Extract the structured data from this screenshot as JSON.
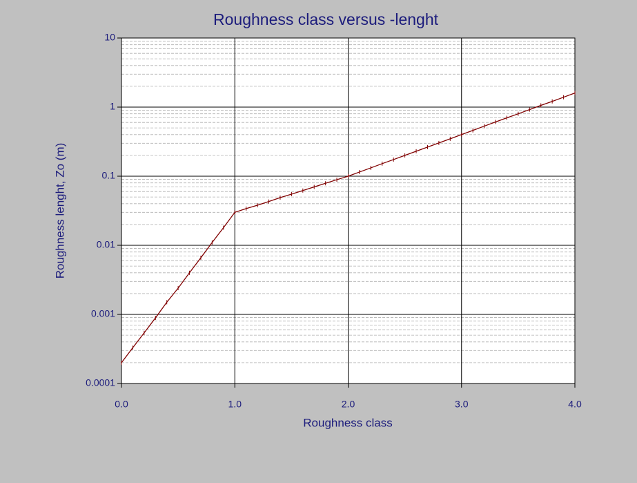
{
  "chart_data": {
    "type": "line",
    "title": "Roughness class versus -lenght",
    "xlabel": "Roughness class",
    "ylabel": "Roughness lenght, Zo (m)",
    "yscale": "log",
    "grid": true,
    "minor_grid": true,
    "xlim": [
      0,
      4
    ],
    "ylim": [
      0.0001,
      10
    ],
    "xticks": [
      {
        "value": 0,
        "label": "0.0"
      },
      {
        "value": 1,
        "label": "1.0"
      },
      {
        "value": 2,
        "label": "2.0"
      },
      {
        "value": 3,
        "label": "3.0"
      },
      {
        "value": 4,
        "label": "4.0"
      }
    ],
    "yticks": [
      0.0001,
      0.001,
      0.01,
      0.1,
      1,
      10
    ],
    "x": [
      0,
      0.1,
      0.2,
      0.3,
      0.4,
      0.5,
      0.6,
      0.7,
      0.8,
      0.9,
      1,
      1.1,
      1.2,
      1.3,
      1.4,
      1.5,
      1.6,
      1.7,
      1.8,
      1.9,
      2,
      2.1,
      2.2,
      2.3,
      2.4,
      2.5,
      2.6,
      2.7,
      2.8,
      2.9,
      3,
      3.1,
      3.2,
      3.3,
      3.4,
      3.5,
      3.6,
      3.7,
      3.8,
      3.9,
      4
    ],
    "series": [
      {
        "color": "#800000",
        "values": [
          0.0002,
          0.00033,
          0.00054,
          0.00089,
          0.0015,
          0.0024,
          0.004,
          0.0066,
          0.011,
          0.018,
          0.03,
          0.034,
          0.038,
          0.043,
          0.049,
          0.055,
          0.062,
          0.07,
          0.079,
          0.089,
          0.1,
          0.115,
          0.132,
          0.152,
          0.174,
          0.2,
          0.23,
          0.264,
          0.303,
          0.348,
          0.4,
          0.46,
          0.53,
          0.61,
          0.7,
          0.8,
          0.92,
          1.06,
          1.21,
          1.39,
          1.6
        ]
      }
    ]
  }
}
